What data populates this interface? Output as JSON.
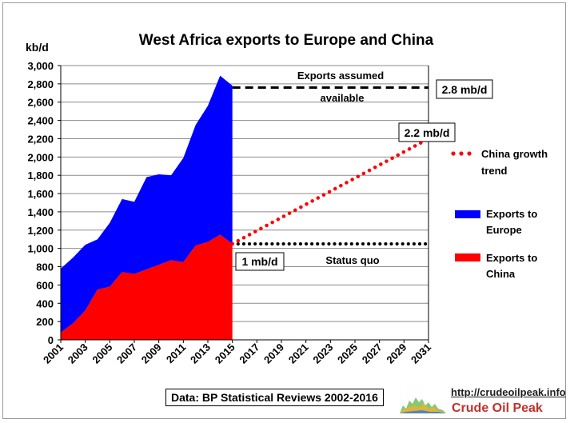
{
  "chart_data": {
    "type": "area",
    "title": "West Africa exports to Europe and China",
    "ylabel": "kb/d",
    "xlabel": "",
    "x_ticks": [
      "2001",
      "2003",
      "2005",
      "2007",
      "2009",
      "2011",
      "2013",
      "2015",
      "2017",
      "2019",
      "2021",
      "2023",
      "2025",
      "2027",
      "2029",
      "2031"
    ],
    "y_ticks": [
      "0",
      "200",
      "400",
      "600",
      "800",
      "1,000",
      "1,200",
      "1,400",
      "1,600",
      "1,800",
      "2,000",
      "2,200",
      "2,400",
      "2,600",
      "2,800",
      "3,000"
    ],
    "xlim": [
      2001,
      2031
    ],
    "ylim": [
      0,
      3000
    ],
    "grid": "horizontal",
    "years": [
      2001,
      2002,
      2003,
      2004,
      2005,
      2006,
      2007,
      2008,
      2009,
      2010,
      2011,
      2012,
      2013,
      2014,
      2015
    ],
    "series": [
      {
        "name": "Exports to China",
        "color": "#ff0000",
        "values": [
          80,
          180,
          320,
          550,
          580,
          740,
          720,
          770,
          820,
          870,
          850,
          1030,
          1070,
          1150,
          1050
        ]
      },
      {
        "name": "Exports to Europe",
        "color": "#0000ff",
        "values": [
          700,
          720,
          720,
          550,
          700,
          800,
          790,
          1010,
          990,
          930,
          1140,
          1320,
          1490,
          1740,
          1730
        ]
      }
    ],
    "lines": [
      {
        "name": "Exports assumed available",
        "style": "dashed",
        "color": "#000000",
        "x": [
          2015,
          2031
        ],
        "y": [
          2760,
          2760
        ]
      },
      {
        "name": "Status quo",
        "style": "dotted",
        "color": "#000000",
        "x": [
          2015,
          2031
        ],
        "y": [
          1050,
          1050
        ]
      },
      {
        "name": "China growth trend",
        "style": "dotted",
        "color": "#ff0000",
        "x": [
          2015,
          2031
        ],
        "y": [
          1050,
          2200
        ]
      }
    ],
    "annotations": {
      "exports_assumed_line1": "Exports  assumed",
      "exports_assumed_line2": "available",
      "box_2_8": "2.8 mb/d",
      "box_2_2": "2.2 mb/d",
      "box_1": "1 mb/d",
      "status_quo": "Status quo"
    },
    "legend": {
      "placement": "right",
      "entries": [
        {
          "label_line1": "China growth",
          "label_line2": "trend",
          "color": "#ff0000",
          "kind": "dots"
        },
        {
          "label_line1": "Exports to",
          "label_line2": "Europe",
          "color": "#0000ff",
          "kind": "patch"
        },
        {
          "label_line1": "Exports to",
          "label_line2": "China",
          "color": "#ff0000",
          "kind": "patch"
        }
      ]
    }
  },
  "footer": {
    "source": "Data: BP Statistical Reviews 2002-2016",
    "logo_url": "http://crudeoilpeak.info",
    "logo_name": "Crude Oil Peak"
  }
}
